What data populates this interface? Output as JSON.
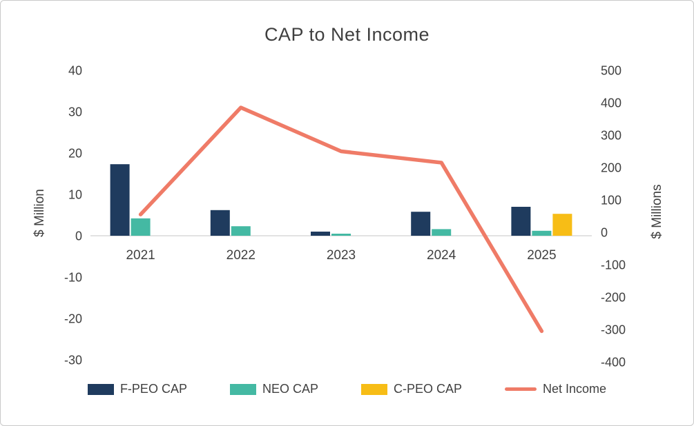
{
  "chart_data": {
    "type": "combo_bar_line",
    "title": "CAP to Net Income",
    "categories": [
      "2021",
      "2022",
      "2023",
      "2024",
      "2025"
    ],
    "bar_series": [
      {
        "name": "F-PEO CAP",
        "color": "#1f3b5e",
        "axis": "left",
        "values": [
          17.3,
          6.2,
          1.0,
          5.8,
          7.0
        ]
      },
      {
        "name": "NEO CAP",
        "color": "#44b9a3",
        "axis": "left",
        "values": [
          4.2,
          2.3,
          0.5,
          1.6,
          1.2
        ]
      },
      {
        "name": "C-PEO CAP",
        "color": "#f7bd16",
        "axis": "left",
        "values": [
          null,
          null,
          null,
          null,
          5.3
        ]
      }
    ],
    "line_series": {
      "name": "Net Income",
      "color": "#ef7b67",
      "axis": "right",
      "values": [
        55,
        385,
        250,
        215,
        -305
      ]
    },
    "left_axis": {
      "label": "$ Million",
      "min": -30,
      "max": 40,
      "ticks": [
        40,
        30,
        20,
        10,
        0,
        -10,
        -20,
        -30
      ]
    },
    "right_axis": {
      "label": "$ Millions",
      "min": -400,
      "max": 500,
      "ticks": [
        500,
        400,
        300,
        200,
        100,
        0,
        -100,
        -200,
        -300,
        -400
      ]
    },
    "legend_position": "bottom",
    "grid": false,
    "text_color": "#404040",
    "axis_line_color": "#d9d9d9"
  }
}
